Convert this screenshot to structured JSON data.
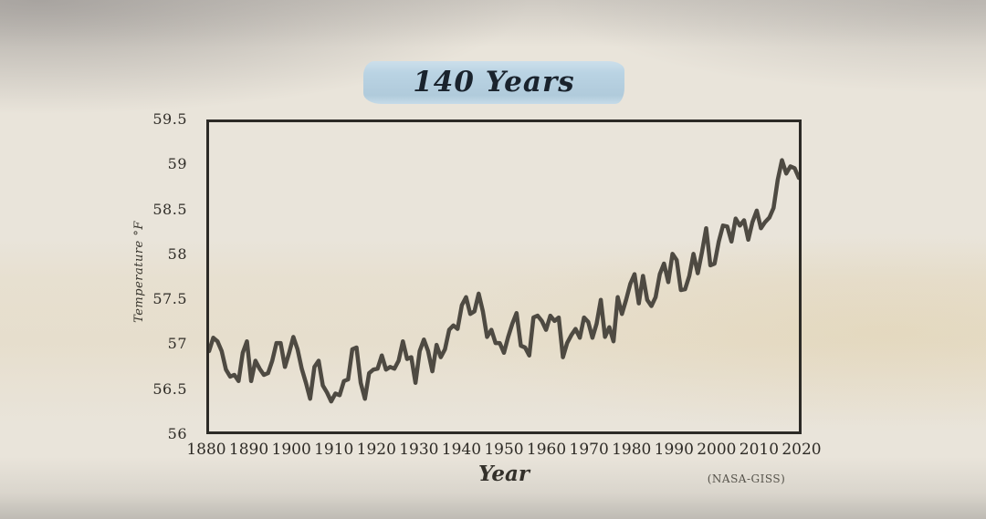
{
  "appearance": {
    "paper_color": "#e9e4da",
    "highlight_color": "#b6d1e2",
    "title_text_color": "#1a232d",
    "axis_color": "#2c2a26",
    "label_color": "#2e2b26"
  },
  "chart_data": {
    "type": "line",
    "title": "140 Years",
    "xlabel": "Year",
    "ylabel": "Temperature °F",
    "source": "(NASA-GISS)",
    "xlim": [
      1880,
      2020
    ],
    "ylim": [
      56,
      59.5
    ],
    "x_ticks": [
      1880,
      1890,
      1900,
      1910,
      1920,
      1930,
      1940,
      1950,
      1960,
      1970,
      1980,
      1990,
      2000,
      2010,
      2020
    ],
    "y_ticks": [
      59.5,
      59,
      58.5,
      58,
      57.5,
      57,
      56.5,
      56
    ],
    "grid": false,
    "legend": "none",
    "line_color": "#4e4a42",
    "line_width": 4.5,
    "series": [
      {
        "name": "Global annual mean temperature (NASA GISS)",
        "x_start": 1880,
        "x_step": 1,
        "values": [
          56.91,
          57.06,
          57.02,
          56.91,
          56.7,
          56.62,
          56.64,
          56.57,
          56.89,
          57.02,
          56.57,
          56.8,
          56.71,
          56.64,
          56.66,
          56.8,
          57.0,
          57.0,
          56.73,
          56.89,
          57.07,
          56.93,
          56.71,
          56.55,
          56.37,
          56.73,
          56.8,
          56.52,
          56.44,
          56.34,
          56.43,
          56.41,
          56.57,
          56.59,
          56.93,
          56.95,
          56.55,
          56.37,
          56.66,
          56.7,
          56.71,
          56.86,
          56.7,
          56.73,
          56.71,
          56.8,
          57.02,
          56.82,
          56.84,
          56.55,
          56.91,
          57.04,
          56.91,
          56.68,
          56.98,
          56.84,
          56.93,
          57.15,
          57.2,
          57.16,
          57.43,
          57.52,
          57.33,
          57.36,
          57.56,
          57.36,
          57.07,
          57.15,
          57.0,
          57.0,
          56.89,
          57.07,
          57.22,
          57.34,
          56.97,
          56.95,
          56.86,
          57.29,
          57.31,
          57.25,
          57.15,
          57.31,
          57.25,
          57.29,
          56.84,
          57.0,
          57.09,
          57.16,
          57.06,
          57.29,
          57.24,
          57.06,
          57.22,
          57.49,
          57.07,
          57.18,
          57.02,
          57.52,
          57.33,
          57.49,
          57.67,
          57.78,
          57.45,
          57.76,
          57.49,
          57.42,
          57.52,
          57.78,
          57.9,
          57.69,
          58.01,
          57.94,
          57.6,
          57.61,
          57.76,
          58.01,
          57.79,
          58.03,
          58.3,
          57.88,
          57.9,
          58.15,
          58.33,
          58.32,
          58.15,
          58.41,
          58.33,
          58.39,
          58.17,
          58.37,
          58.5,
          58.3,
          58.37,
          58.42,
          58.53,
          58.85,
          59.07,
          58.92,
          59.0,
          58.98,
          58.87
        ]
      }
    ]
  }
}
